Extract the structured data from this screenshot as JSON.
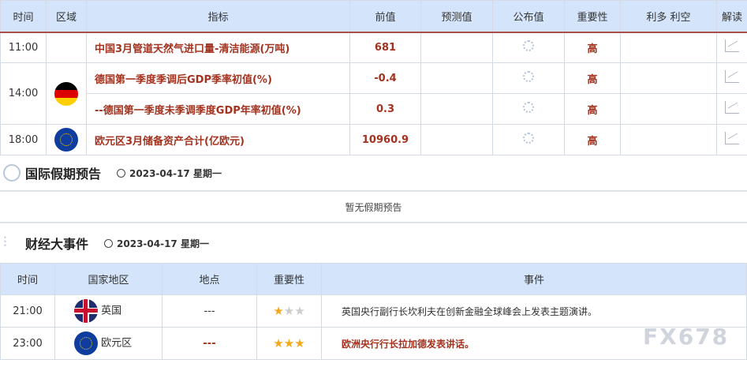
{
  "indicators": {
    "headers": [
      "时间",
      "区域",
      "指标",
      "前值",
      "预测值",
      "公布值",
      "重要性",
      "利多 利空",
      "解读"
    ],
    "rows": [
      {
        "time": "11:00",
        "region": "",
        "indicator": "中国3月管道天然气进口量-清洁能源(万吨)",
        "previous": "681",
        "forecast": "",
        "actual": "loading-icon",
        "importance": "高"
      },
      {
        "time": "14:00",
        "region": "germany-flag",
        "indicator": "德国第一季度季调后GDP季率初值(%)",
        "previous": "-0.4",
        "forecast": "",
        "actual": "loading-icon",
        "importance": "高"
      },
      {
        "time": "",
        "region": "",
        "indicator": "--德国第一季度未季调季度GDP年率初值(%)",
        "previous": "0.3",
        "forecast": "",
        "actual": "loading-icon",
        "importance": "高"
      },
      {
        "time": "18:00",
        "region": "eu-flag",
        "indicator": "欧元区3月储备资产合计(亿欧元)",
        "previous": "10960.9",
        "forecast": "",
        "actual": "loading-icon",
        "importance": "高"
      }
    ]
  },
  "holidays": {
    "title": "国际假期预告",
    "date": "2023-04-17 星期一",
    "empty": "暂无假期预告"
  },
  "events": {
    "title": "财经大事件",
    "date": "2023-04-17 星期一",
    "headers": [
      "时间",
      "国家地区",
      "地点",
      "重要性",
      "事件"
    ],
    "rows": [
      {
        "time": "21:00",
        "country": "英国",
        "place": "---",
        "stars": 1,
        "event": "英国央行副行长坎利夫在创新金融全球峰会上发表主题演讲。"
      },
      {
        "time": "23:00",
        "country": "欧元区",
        "place": "---",
        "stars": 3,
        "event": "欧洲央行行长拉加德发表讲话。"
      }
    ]
  },
  "watermark": "FX678",
  "colors": {
    "header_bg": "#d4e5fb",
    "accent_red": "#a3321f",
    "star": "#f2a81d"
  }
}
